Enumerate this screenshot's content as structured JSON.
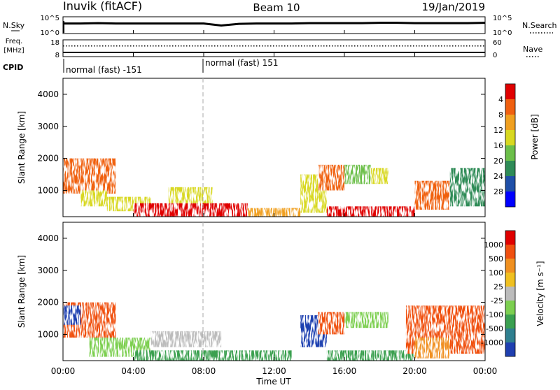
{
  "header": {
    "station": "Inuvik (fitACF)",
    "beam": "Beam 10",
    "date": "19/Jan/2019"
  },
  "noise_panel": {
    "left_label": "N.Sky",
    "left_ticks": [
      "10^5",
      "10^0"
    ],
    "right_label": "N.Search",
    "right_ticks": [
      "10^5",
      "10^0"
    ]
  },
  "freq_panel": {
    "left_label_1": "Freq.",
    "left_label_2": "[MHz]",
    "left_ticks": [
      "18",
      "8"
    ],
    "right_label": "Nave",
    "right_ticks": [
      "60",
      "0"
    ]
  },
  "cpid": {
    "label": "CPID",
    "modes": [
      "normal (fast) -151",
      "normal (fast) 151"
    ]
  },
  "time_axis": {
    "title": "Time UT",
    "ticks": [
      "00:00",
      "04:00",
      "08:00",
      "12:00",
      "16:00",
      "20:00",
      "00:00"
    ]
  },
  "chart_data": [
    {
      "type": "line",
      "title": "",
      "series": [
        {
          "name": "N.Sky",
          "values": [
            3.0,
            3.0,
            3.1,
            3.0,
            3.0,
            3.0,
            3.0,
            3.0,
            3.0,
            2.4,
            2.9,
            3.0,
            3.0,
            3.0,
            3.1,
            3.1,
            3.1,
            3.1,
            3.2,
            3.2,
            3.1,
            3.1,
            3.1,
            3.1,
            3.2
          ]
        }
      ],
      "x": [
        0,
        1,
        2,
        3,
        4,
        5,
        6,
        7,
        8,
        9,
        10,
        11,
        12,
        13,
        14,
        15,
        16,
        17,
        18,
        19,
        20,
        21,
        22,
        23,
        24
      ],
      "xlabel": "Time UT",
      "ylabel": "N.Sky",
      "ylim": [
        0,
        5
      ],
      "scale": "log"
    },
    {
      "type": "line",
      "title": "",
      "series": [
        {
          "name": "Freq.",
          "values": [
            10.5,
            10.5,
            10.5,
            10.5,
            10.5,
            10.5
          ]
        },
        {
          "name": "Nave",
          "values": [
            38,
            38,
            38,
            38,
            38,
            38
          ]
        }
      ],
      "x": [
        0,
        5,
        10,
        15,
        20,
        24
      ],
      "xlabel": "Time UT",
      "ylabel": "Freq. [MHz]",
      "ylim": [
        8,
        18
      ]
    },
    {
      "type": "heatmap",
      "title": "",
      "xlabel": "Time UT",
      "ylabel": "Slant Range [km]",
      "xlim": [
        0,
        24
      ],
      "ylim": [
        180,
        4500
      ],
      "yticks": [
        "1000",
        "2000",
        "3000",
        "4000"
      ],
      "colorbar_label": "Power [dB]",
      "colorbar_ticks": [
        "4",
        "8",
        "12",
        "16",
        "20",
        "24",
        "28"
      ],
      "colors": [
        "#0000ff",
        "#1f4fa8",
        "#2e8b57",
        "#6cbf4a",
        "#d8d820",
        "#f0a020",
        "#f06010",
        "#e00000"
      ],
      "regions": [
        {
          "t": [
            0.0,
            3.0
          ],
          "r": [
            900,
            2000
          ],
          "level": 6
        },
        {
          "t": [
            1.0,
            2.5
          ],
          "r": [
            500,
            1000
          ],
          "level": 4
        },
        {
          "t": [
            2.5,
            5.0
          ],
          "r": [
            350,
            800
          ],
          "level": 4
        },
        {
          "t": [
            4.0,
            10.5
          ],
          "r": [
            180,
            600
          ],
          "level": 7
        },
        {
          "t": [
            6.0,
            8.5
          ],
          "r": [
            600,
            1100
          ],
          "level": 4
        },
        {
          "t": [
            10.5,
            13.5
          ],
          "r": [
            180,
            450
          ],
          "level": 5
        },
        {
          "t": [
            13.5,
            15.0
          ],
          "r": [
            300,
            1500
          ],
          "level": 4
        },
        {
          "t": [
            14.5,
            16.0
          ],
          "r": [
            1000,
            1800
          ],
          "level": 6
        },
        {
          "t": [
            16.0,
            17.5
          ],
          "r": [
            1200,
            1800
          ],
          "level": 3
        },
        {
          "t": [
            17.5,
            18.5
          ],
          "r": [
            1200,
            1700
          ],
          "level": 4
        },
        {
          "t": [
            15.0,
            20.0
          ],
          "r": [
            180,
            500
          ],
          "level": 7
        },
        {
          "t": [
            20.0,
            22.0
          ],
          "r": [
            400,
            1300
          ],
          "level": 6
        },
        {
          "t": [
            22.0,
            24.0
          ],
          "r": [
            500,
            1700
          ],
          "level": 2
        }
      ]
    },
    {
      "type": "heatmap",
      "title": "",
      "xlabel": "Time UT",
      "ylabel": "Slant Range [km]",
      "xlim": [
        0,
        24
      ],
      "ylim": [
        180,
        4500
      ],
      "yticks": [
        "1000",
        "2000",
        "3000",
        "4000"
      ],
      "colorbar_label": "Velocity [m s⁻¹]",
      "colorbar_ticks": [
        "1000",
        "500",
        "100",
        "25",
        "-25",
        "-100",
        "-500",
        "-1000"
      ],
      "colors": [
        "#1f3fb0",
        "#2f7f8f",
        "#3aa050",
        "#7ccf50",
        "#bcbcbc",
        "#f0c020",
        "#f09020",
        "#f05010",
        "#e00000"
      ],
      "regions": [
        {
          "t": [
            0.0,
            3.0
          ],
          "r": [
            900,
            2000
          ],
          "level": 7
        },
        {
          "t": [
            0.0,
            1.0
          ],
          "r": [
            1300,
            1900
          ],
          "level": 0
        },
        {
          "t": [
            1.5,
            5.0
          ],
          "r": [
            300,
            900
          ],
          "level": 3
        },
        {
          "t": [
            5.0,
            9.0
          ],
          "r": [
            600,
            1100
          ],
          "level": 4
        },
        {
          "t": [
            4.0,
            13.0
          ],
          "r": [
            180,
            500
          ],
          "level": 2
        },
        {
          "t": [
            13.5,
            15.0
          ],
          "r": [
            600,
            1600
          ],
          "level": 0
        },
        {
          "t": [
            14.5,
            16.0
          ],
          "r": [
            1000,
            1700
          ],
          "level": 7
        },
        {
          "t": [
            16.0,
            18.5
          ],
          "r": [
            1200,
            1700
          ],
          "level": 3
        },
        {
          "t": [
            15.0,
            20.0
          ],
          "r": [
            180,
            500
          ],
          "level": 2
        },
        {
          "t": [
            19.5,
            24.0
          ],
          "r": [
            400,
            1900
          ],
          "level": 7
        },
        {
          "t": [
            20.0,
            22.0
          ],
          "r": [
            250,
            900
          ],
          "level": 6
        }
      ]
    }
  ]
}
